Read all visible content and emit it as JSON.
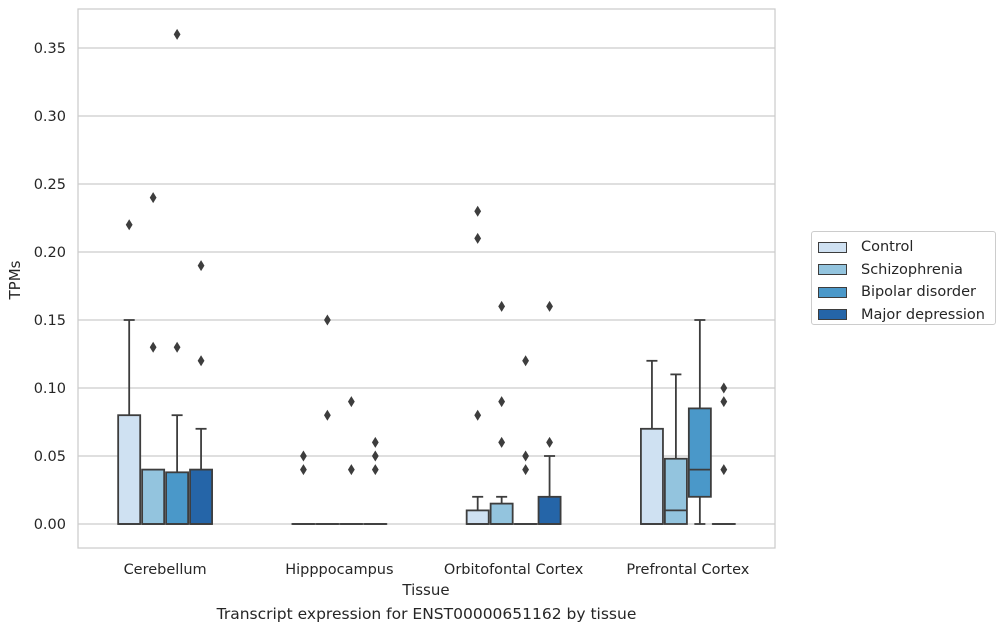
{
  "chart_data": {
    "type": "boxplot",
    "xlabel": "Tissue",
    "ylabel": "TPMs",
    "caption": "Transcript expression for ENST00000651162 by tissue",
    "ylim": [
      -0.018,
      0.378
    ],
    "yticks": [
      0.0,
      0.05,
      0.1,
      0.15,
      0.2,
      0.25,
      0.3,
      0.35
    ],
    "ytick_labels": [
      "0.00",
      "0.05",
      "0.10",
      "0.15",
      "0.20",
      "0.25",
      "0.30",
      "0.35"
    ],
    "grid": "horizontal",
    "legend_position": "right",
    "categories": [
      "Cerebellum",
      "Hipppocampus",
      "Orbitofontal Cortex",
      "Prefrontal Cortex"
    ],
    "series": [
      {
        "name": "Control",
        "color": "#cfe1f2",
        "boxes": [
          {
            "q1": 0,
            "median": 0,
            "q3": 0.08,
            "whislo": 0,
            "whishi": 0.15,
            "fliers": [
              0.22
            ]
          },
          {
            "q1": 0,
            "median": 0,
            "q3": 0,
            "whislo": 0,
            "whishi": 0,
            "fliers": [
              0.04,
              0.05
            ]
          },
          {
            "q1": 0,
            "median": 0,
            "q3": 0.01,
            "whislo": 0,
            "whishi": 0.02,
            "fliers": [
              0.08,
              0.21,
              0.23
            ]
          },
          {
            "q1": 0,
            "median": 0,
            "q3": 0.07,
            "whislo": 0,
            "whishi": 0.12,
            "fliers": []
          }
        ]
      },
      {
        "name": "Schizophrenia",
        "color": "#93c4de",
        "boxes": [
          {
            "q1": 0,
            "median": 0,
            "q3": 0.04,
            "whislo": 0,
            "whishi": 0.04,
            "fliers": [
              0.13,
              0.24
            ]
          },
          {
            "q1": 0,
            "median": 0,
            "q3": 0,
            "whislo": 0,
            "whishi": 0,
            "fliers": [
              0.08,
              0.15
            ]
          },
          {
            "q1": 0,
            "median": 0,
            "q3": 0.015,
            "whislo": 0,
            "whishi": 0.02,
            "fliers": [
              0.06,
              0.09,
              0.16
            ]
          },
          {
            "q1": 0,
            "median": 0.01,
            "q3": 0.048,
            "whislo": 0,
            "whishi": 0.11,
            "fliers": []
          }
        ]
      },
      {
        "name": "Bipolar disorder",
        "color": "#4a98c9",
        "boxes": [
          {
            "q1": 0,
            "median": 0,
            "q3": 0.038,
            "whislo": 0,
            "whishi": 0.08,
            "fliers": [
              0.13,
              0.36
            ]
          },
          {
            "q1": 0,
            "median": 0,
            "q3": 0,
            "whislo": 0,
            "whishi": 0,
            "fliers": [
              0.04,
              0.09
            ]
          },
          {
            "q1": 0,
            "median": 0,
            "q3": 0,
            "whislo": 0,
            "whishi": 0,
            "fliers": [
              0.04,
              0.05,
              0.12
            ]
          },
          {
            "q1": 0.02,
            "median": 0.04,
            "q3": 0.085,
            "whislo": 0,
            "whishi": 0.15,
            "fliers": []
          }
        ]
      },
      {
        "name": "Major depression",
        "color": "#2565a8",
        "boxes": [
          {
            "q1": 0,
            "median": 0,
            "q3": 0.04,
            "whislo": 0,
            "whishi": 0.07,
            "fliers": [
              0.12,
              0.19
            ]
          },
          {
            "q1": 0,
            "median": 0,
            "q3": 0,
            "whislo": 0,
            "whishi": 0,
            "fliers": [
              0.04,
              0.05,
              0.06
            ]
          },
          {
            "q1": 0,
            "median": 0,
            "q3": 0.02,
            "whislo": 0,
            "whishi": 0.05,
            "fliers": [
              0.06,
              0.16
            ]
          },
          {
            "q1": 0,
            "median": 0,
            "q3": 0,
            "whislo": 0,
            "whishi": 0,
            "fliers": [
              0.04,
              0.09,
              0.1
            ]
          }
        ]
      }
    ]
  }
}
